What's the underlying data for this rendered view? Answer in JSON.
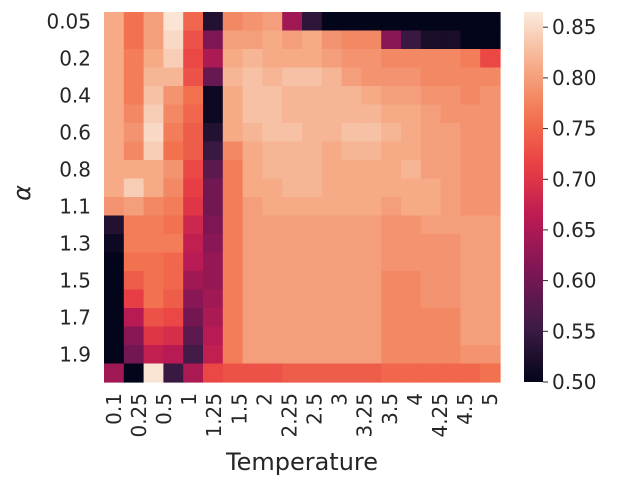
{
  "chart_data": {
    "type": "heatmap",
    "title": "",
    "xlabel": "Temperature",
    "ylabel": "α",
    "x_tick_labels": [
      "0.1",
      "0.25",
      "0.5",
      "1",
      "1.25",
      "1.5",
      "2",
      "2.25",
      "2.5",
      "3",
      "3.25",
      "3.5",
      "4",
      "4.25",
      "4.5",
      "5"
    ],
    "y_tick_labels": [
      "0.05",
      "0.2",
      "0.4",
      "0.6",
      "0.8",
      "1.1",
      "1.3",
      "1.5",
      "1.7",
      "1.9"
    ],
    "n_cols": 20,
    "n_rows": 20,
    "colorbar": {
      "min": 0.5,
      "max": 0.865,
      "ticks": [
        "0.50",
        "0.55",
        "0.60",
        "0.65",
        "0.70",
        "0.75",
        "0.80",
        "0.85"
      ],
      "colormap": "rocket"
    },
    "values": [
      [
        0.81,
        0.76,
        0.8,
        0.86,
        0.75,
        0.53,
        0.78,
        0.79,
        0.8,
        0.64,
        0.54,
        0.5,
        0.5,
        0.5,
        0.5,
        0.5,
        0.5,
        0.5,
        0.5,
        0.5
      ],
      [
        0.81,
        0.76,
        0.8,
        0.85,
        0.73,
        0.61,
        0.8,
        0.8,
        0.81,
        0.8,
        0.81,
        0.79,
        0.78,
        0.78,
        0.62,
        0.55,
        0.52,
        0.52,
        0.5,
        0.5
      ],
      [
        0.81,
        0.77,
        0.81,
        0.84,
        0.72,
        0.65,
        0.81,
        0.82,
        0.81,
        0.81,
        0.81,
        0.8,
        0.79,
        0.79,
        0.78,
        0.78,
        0.78,
        0.78,
        0.77,
        0.72
      ],
      [
        0.81,
        0.77,
        0.82,
        0.82,
        0.73,
        0.59,
        0.82,
        0.83,
        0.82,
        0.83,
        0.83,
        0.82,
        0.8,
        0.79,
        0.79,
        0.79,
        0.78,
        0.78,
        0.78,
        0.78
      ],
      [
        0.81,
        0.77,
        0.83,
        0.79,
        0.76,
        0.51,
        0.81,
        0.83,
        0.83,
        0.82,
        0.82,
        0.82,
        0.82,
        0.81,
        0.8,
        0.8,
        0.79,
        0.79,
        0.78,
        0.79
      ],
      [
        0.81,
        0.78,
        0.84,
        0.78,
        0.75,
        0.51,
        0.81,
        0.83,
        0.83,
        0.82,
        0.82,
        0.82,
        0.82,
        0.82,
        0.81,
        0.81,
        0.8,
        0.79,
        0.79,
        0.79
      ],
      [
        0.81,
        0.79,
        0.85,
        0.77,
        0.74,
        0.53,
        0.81,
        0.82,
        0.83,
        0.83,
        0.82,
        0.82,
        0.83,
        0.83,
        0.82,
        0.81,
        0.8,
        0.8,
        0.79,
        0.79
      ],
      [
        0.81,
        0.78,
        0.84,
        0.76,
        0.74,
        0.55,
        0.78,
        0.81,
        0.82,
        0.82,
        0.82,
        0.81,
        0.82,
        0.82,
        0.81,
        0.81,
        0.8,
        0.8,
        0.79,
        0.79
      ],
      [
        0.81,
        0.81,
        0.81,
        0.79,
        0.72,
        0.58,
        0.77,
        0.81,
        0.82,
        0.82,
        0.82,
        0.81,
        0.81,
        0.81,
        0.81,
        0.82,
        0.8,
        0.8,
        0.79,
        0.79
      ],
      [
        0.81,
        0.84,
        0.81,
        0.78,
        0.71,
        0.6,
        0.77,
        0.81,
        0.81,
        0.82,
        0.82,
        0.81,
        0.81,
        0.81,
        0.81,
        0.81,
        0.81,
        0.8,
        0.79,
        0.79
      ],
      [
        0.79,
        0.8,
        0.78,
        0.77,
        0.7,
        0.6,
        0.77,
        0.8,
        0.81,
        0.81,
        0.81,
        0.81,
        0.81,
        0.81,
        0.8,
        0.81,
        0.81,
        0.8,
        0.79,
        0.79
      ],
      [
        0.53,
        0.77,
        0.77,
        0.76,
        0.68,
        0.61,
        0.77,
        0.8,
        0.8,
        0.8,
        0.8,
        0.8,
        0.8,
        0.8,
        0.79,
        0.79,
        0.8,
        0.8,
        0.8,
        0.8
      ],
      [
        0.51,
        0.77,
        0.77,
        0.77,
        0.67,
        0.62,
        0.77,
        0.8,
        0.8,
        0.8,
        0.8,
        0.8,
        0.8,
        0.8,
        0.79,
        0.79,
        0.79,
        0.79,
        0.8,
        0.8
      ],
      [
        0.5,
        0.76,
        0.76,
        0.75,
        0.66,
        0.63,
        0.77,
        0.8,
        0.8,
        0.8,
        0.8,
        0.8,
        0.8,
        0.8,
        0.79,
        0.79,
        0.79,
        0.79,
        0.8,
        0.8
      ],
      [
        0.5,
        0.74,
        0.76,
        0.75,
        0.64,
        0.63,
        0.77,
        0.8,
        0.8,
        0.8,
        0.8,
        0.8,
        0.8,
        0.8,
        0.78,
        0.78,
        0.79,
        0.79,
        0.8,
        0.8
      ],
      [
        0.5,
        0.71,
        0.76,
        0.74,
        0.62,
        0.64,
        0.77,
        0.8,
        0.8,
        0.8,
        0.8,
        0.8,
        0.8,
        0.8,
        0.78,
        0.78,
        0.79,
        0.79,
        0.8,
        0.8
      ],
      [
        0.5,
        0.66,
        0.73,
        0.72,
        0.6,
        0.65,
        0.77,
        0.8,
        0.8,
        0.8,
        0.8,
        0.8,
        0.8,
        0.8,
        0.78,
        0.78,
        0.78,
        0.78,
        0.8,
        0.8
      ],
      [
        0.5,
        0.62,
        0.7,
        0.69,
        0.58,
        0.66,
        0.77,
        0.8,
        0.8,
        0.8,
        0.8,
        0.8,
        0.8,
        0.8,
        0.78,
        0.78,
        0.78,
        0.78,
        0.8,
        0.8
      ],
      [
        0.5,
        0.6,
        0.67,
        0.66,
        0.56,
        0.67,
        0.77,
        0.8,
        0.8,
        0.8,
        0.8,
        0.8,
        0.8,
        0.8,
        0.78,
        0.78,
        0.78,
        0.78,
        0.79,
        0.79
      ],
      [
        0.64,
        0.5,
        0.86,
        0.55,
        0.65,
        0.72,
        0.73,
        0.73,
        0.73,
        0.74,
        0.74,
        0.74,
        0.74,
        0.74,
        0.75,
        0.75,
        0.75,
        0.75,
        0.75,
        0.76
      ]
    ]
  }
}
